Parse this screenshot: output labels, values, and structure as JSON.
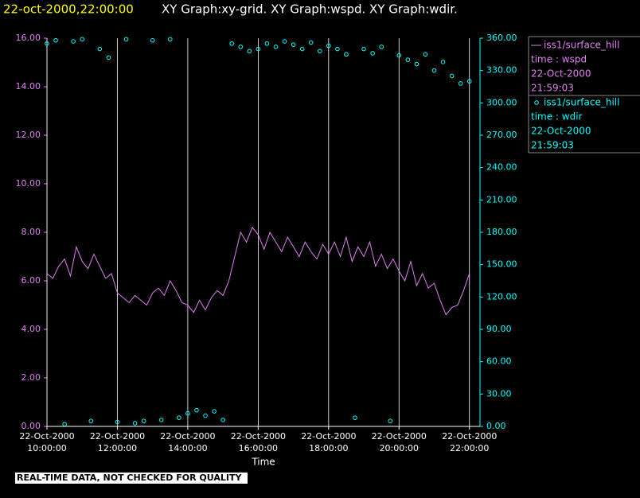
{
  "chart_data": {
    "type": "line-scatter",
    "title": "22-oct-2000,22:00:00",
    "subtitle": "XY Graph:xy-grid.  XY Graph:wspd.  XY Graph:wdir.",
    "x_label": "Time",
    "note": "REAL-TIME DATA, NOT CHECKED FOR QUALITY",
    "xlim": [
      "2000-10-22T10:00",
      "2000-10-22T22:18"
    ],
    "xticks": [
      {
        "value": "2000-10-22T10:00",
        "label": "22-Oct-2000 10:00:00"
      },
      {
        "value": "2000-10-22T12:00",
        "label": "22-Oct-2000 12:00:00"
      },
      {
        "value": "2000-10-22T14:00",
        "label": "22-Oct-2000 14:00:00"
      },
      {
        "value": "2000-10-22T16:00",
        "label": "22-Oct-2000 16:00:00"
      },
      {
        "value": "2000-10-22T18:00",
        "label": "22-Oct-2000 18:00:00"
      },
      {
        "value": "2000-10-22T20:00",
        "label": "22-Oct-2000 20:00:00"
      },
      {
        "value": "2000-10-22T22:00",
        "label": "22-Oct-2000 22:00:00"
      }
    ],
    "grid": true,
    "ylim": [
      0,
      16
    ],
    "yticks": [
      {
        "value": 0,
        "label": "0.00"
      },
      {
        "value": 2,
        "label": "2.00"
      },
      {
        "value": 4,
        "label": "4.00"
      },
      {
        "value": 6,
        "label": "6.00"
      },
      {
        "value": 8,
        "label": "8.00"
      },
      {
        "value": 10,
        "label": "10.00"
      },
      {
        "value": 12,
        "label": "12.00"
      },
      {
        "value": 14,
        "label": "14.00"
      },
      {
        "value": 16,
        "label": "16.00"
      }
    ],
    "y2lim": [
      0,
      360
    ],
    "y2ticks": [
      {
        "value": 0,
        "label": "0.00"
      },
      {
        "value": 30,
        "label": "30.00"
      },
      {
        "value": 60,
        "label": "60.00"
      },
      {
        "value": 90,
        "label": "90.00"
      },
      {
        "value": 120,
        "label": "120.00"
      },
      {
        "value": 150,
        "label": "150.00"
      },
      {
        "value": 180,
        "label": "180.00"
      },
      {
        "value": 210,
        "label": "210.00"
      },
      {
        "value": 240,
        "label": "240.00"
      },
      {
        "value": 270,
        "label": "270.00"
      },
      {
        "value": 300,
        "label": "300.00"
      },
      {
        "value": 330,
        "label": "330.00"
      },
      {
        "value": 360,
        "label": "360.00"
      }
    ],
    "series": [
      {
        "name": "iss1/surface_hill",
        "kind": "line",
        "label": "time : wspd",
        "date": "22-Oct-2000",
        "time": "21:59:03",
        "color": "#e080f0",
        "axis": "y",
        "x": [
          "2000-10-22T10:00",
          "2000-10-22T10:10",
          "2000-10-22T10:20",
          "2000-10-22T10:30",
          "2000-10-22T10:40",
          "2000-10-22T10:50",
          "2000-10-22T11:00",
          "2000-10-22T11:10",
          "2000-10-22T11:20",
          "2000-10-22T11:30",
          "2000-10-22T11:40",
          "2000-10-22T11:50",
          "2000-10-22T12:00",
          "2000-10-22T12:10",
          "2000-10-22T12:20",
          "2000-10-22T12:30",
          "2000-10-22T12:40",
          "2000-10-22T12:50",
          "2000-10-22T13:00",
          "2000-10-22T13:10",
          "2000-10-22T13:20",
          "2000-10-22T13:30",
          "2000-10-22T13:40",
          "2000-10-22T13:50",
          "2000-10-22T14:00",
          "2000-10-22T14:10",
          "2000-10-22T14:20",
          "2000-10-22T14:30",
          "2000-10-22T14:40",
          "2000-10-22T14:50",
          "2000-10-22T15:00",
          "2000-10-22T15:10",
          "2000-10-22T15:20",
          "2000-10-22T15:30",
          "2000-10-22T15:40",
          "2000-10-22T15:50",
          "2000-10-22T16:00",
          "2000-10-22T16:10",
          "2000-10-22T16:20",
          "2000-10-22T16:30",
          "2000-10-22T16:40",
          "2000-10-22T16:50",
          "2000-10-22T17:00",
          "2000-10-22T17:10",
          "2000-10-22T17:20",
          "2000-10-22T17:30",
          "2000-10-22T17:40",
          "2000-10-22T17:50",
          "2000-10-22T18:00",
          "2000-10-22T18:10",
          "2000-10-22T18:20",
          "2000-10-22T18:30",
          "2000-10-22T18:40",
          "2000-10-22T18:50",
          "2000-10-22T19:00",
          "2000-10-22T19:10",
          "2000-10-22T19:20",
          "2000-10-22T19:30",
          "2000-10-22T19:40",
          "2000-10-22T19:50",
          "2000-10-22T20:00",
          "2000-10-22T20:10",
          "2000-10-22T20:20",
          "2000-10-22T20:30",
          "2000-10-22T20:40",
          "2000-10-22T20:50",
          "2000-10-22T21:00",
          "2000-10-22T21:10",
          "2000-10-22T21:20",
          "2000-10-22T21:30",
          "2000-10-22T21:40",
          "2000-10-22T21:50",
          "2000-10-22T22:00"
        ],
        "values": [
          6.3,
          6.1,
          6.6,
          6.9,
          6.2,
          7.4,
          6.8,
          6.5,
          7.1,
          6.6,
          6.1,
          6.3,
          5.5,
          5.3,
          5.1,
          5.4,
          5.2,
          5.0,
          5.5,
          5.7,
          5.4,
          6.0,
          5.6,
          5.1,
          5.0,
          4.7,
          5.2,
          4.8,
          5.3,
          5.6,
          5.4,
          6.0,
          7.0,
          8.0,
          7.6,
          8.2,
          7.9,
          7.3,
          8.0,
          7.6,
          7.2,
          7.8,
          7.4,
          7.0,
          7.6,
          7.2,
          6.9,
          7.5,
          7.1,
          7.6,
          7.0,
          7.8,
          6.8,
          7.4,
          7.0,
          7.6,
          6.6,
          7.1,
          6.5,
          6.9,
          6.4,
          6.0,
          6.8,
          5.8,
          6.3,
          5.7,
          5.9,
          5.2,
          4.6,
          4.9,
          5.0,
          5.6,
          6.3
        ]
      },
      {
        "name": "iss1/surface_hill",
        "kind": "scatter",
        "label": "time : wdir",
        "date": "22-Oct-2000",
        "time": "21:59:03",
        "color": "#00ffff",
        "axis": "y2",
        "x": [
          "2000-10-22T10:00",
          "2000-10-22T10:15",
          "2000-10-22T10:30",
          "2000-10-22T10:45",
          "2000-10-22T11:00",
          "2000-10-22T11:15",
          "2000-10-22T11:30",
          "2000-10-22T11:45",
          "2000-10-22T12:00",
          "2000-10-22T12:15",
          "2000-10-22T12:30",
          "2000-10-22T12:45",
          "2000-10-22T13:00",
          "2000-10-22T13:15",
          "2000-10-22T13:30",
          "2000-10-22T13:45",
          "2000-10-22T14:00",
          "2000-10-22T14:15",
          "2000-10-22T14:30",
          "2000-10-22T14:45",
          "2000-10-22T15:00",
          "2000-10-22T15:15",
          "2000-10-22T15:30",
          "2000-10-22T15:45",
          "2000-10-22T16:00",
          "2000-10-22T16:15",
          "2000-10-22T16:30",
          "2000-10-22T16:45",
          "2000-10-22T17:00",
          "2000-10-22T17:15",
          "2000-10-22T17:30",
          "2000-10-22T17:45",
          "2000-10-22T18:00",
          "2000-10-22T18:15",
          "2000-10-22T18:30",
          "2000-10-22T18:45",
          "2000-10-22T19:00",
          "2000-10-22T19:15",
          "2000-10-22T19:30",
          "2000-10-22T19:45",
          "2000-10-22T20:00",
          "2000-10-22T20:15",
          "2000-10-22T20:30",
          "2000-10-22T20:45",
          "2000-10-22T21:00",
          "2000-10-22T21:15",
          "2000-10-22T21:30",
          "2000-10-22T21:45",
          "2000-10-22T22:00"
        ],
        "values": [
          355,
          358,
          2,
          357,
          359,
          5,
          350,
          342,
          4,
          359,
          3,
          5,
          358,
          6,
          359,
          8,
          12,
          15,
          10,
          14,
          6,
          355,
          352,
          348,
          350,
          355,
          352,
          357,
          354,
          350,
          356,
          348,
          353,
          350,
          345,
          8,
          350,
          346,
          352,
          5,
          344,
          340,
          336,
          345,
          330,
          338,
          325,
          318,
          320
        ]
      }
    ]
  }
}
